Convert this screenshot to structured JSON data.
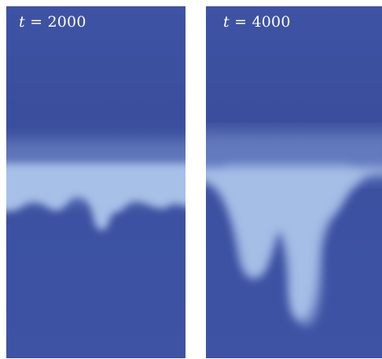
{
  "panels": [
    {
      "id": "left",
      "time_label": {
        "variable": "t",
        "equals": " = ",
        "value": "2000"
      }
    },
    {
      "id": "right",
      "time_label": {
        "variable": "t",
        "equals": " = ",
        "value": "4000"
      }
    }
  ],
  "colors": {
    "background": "#ffffff",
    "fluid_dark": "#3d52a2",
    "fluid_light": "#a9c2e8"
  }
}
